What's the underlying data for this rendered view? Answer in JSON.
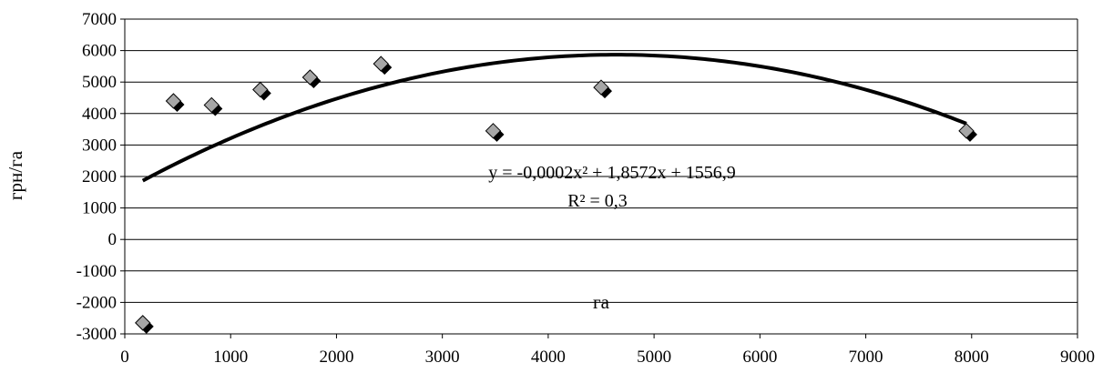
{
  "chart_data": {
    "type": "scatter",
    "title": "",
    "xlabel": "га",
    "ylabel": "грн/га",
    "xlim": [
      0,
      9000
    ],
    "ylim": [
      -3000,
      7000
    ],
    "x_ticks": [
      0,
      1000,
      2000,
      3000,
      4000,
      5000,
      6000,
      7000,
      8000,
      9000
    ],
    "y_ticks": [
      -3000,
      -2000,
      -1000,
      0,
      1000,
      2000,
      3000,
      4000,
      5000,
      6000,
      7000
    ],
    "grid": "horizontal",
    "legend": "none",
    "series": [
      {
        "marker": "diamond",
        "points": [
          {
            "x": 170,
            "y": -2650
          },
          {
            "x": 460,
            "y": 4400
          },
          {
            "x": 820,
            "y": 4270
          },
          {
            "x": 1280,
            "y": 4760
          },
          {
            "x": 1750,
            "y": 5150
          },
          {
            "x": 2420,
            "y": 5580
          },
          {
            "x": 3480,
            "y": 3450
          },
          {
            "x": 4500,
            "y": 4830
          },
          {
            "x": 7950,
            "y": 3450
          }
        ]
      }
    ],
    "trendline": {
      "type": "polynomial",
      "coefficients": [
        -0.0002,
        1.8572,
        1556.9
      ],
      "x_range": [
        170,
        7950
      ],
      "equation": "y = -0,0002x² + 1,8572x + 1556,9",
      "r_squared": "R² = 0,3"
    },
    "colors": {
      "marker_fill": "#a6a6a6",
      "marker_shadow": "#000000",
      "trendline": "#000000",
      "gridline": "#000000"
    }
  }
}
